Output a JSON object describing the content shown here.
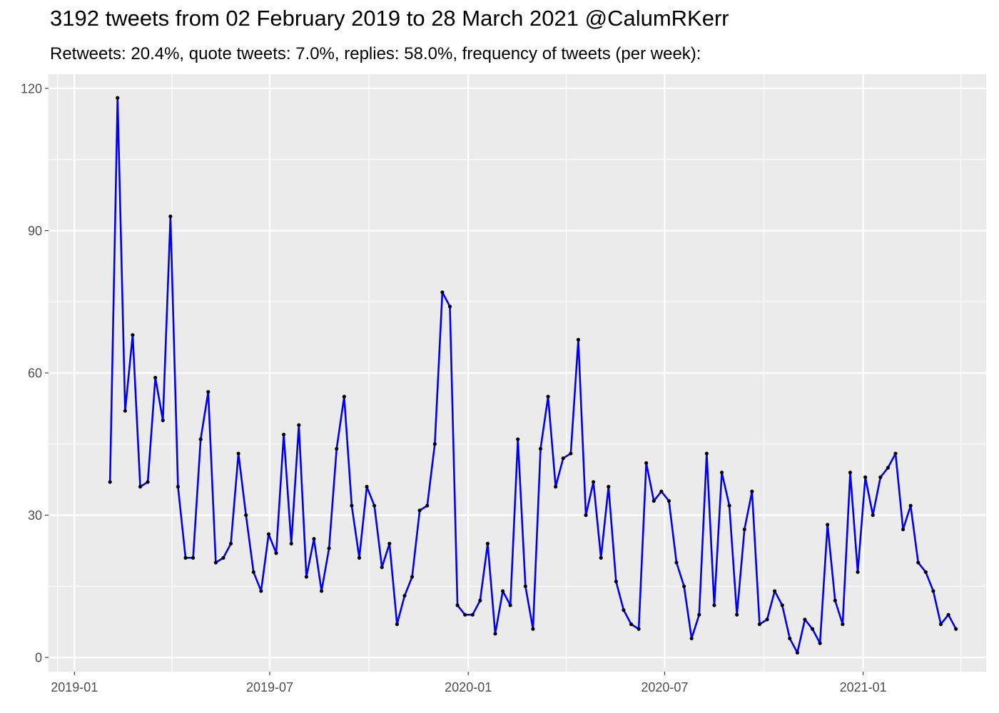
{
  "title": "3192 tweets from 02 February 2019 to 28 March 2021 @CalumRKerr",
  "subtitle": "Retweets: 20.4%, quote tweets: 7.0%, replies: 58.0%, frequency of tweets (per week):",
  "colors": {
    "line": "#0000ee",
    "point": "#000000",
    "panel": "#ebebeb",
    "grid": "#ffffff"
  },
  "chart_data": {
    "type": "line",
    "title": "3192 tweets from 02 February 2019 to 28 March 2021 @CalumRKerr",
    "subtitle": "Retweets: 20.4%, quote tweets: 7.0%, replies: 58.0%, frequency of tweets (per week):",
    "xlabel": "",
    "ylabel": "",
    "x_axis": {
      "type": "date",
      "range": [
        "2018-12-08",
        "2021-04-25"
      ],
      "ticks": [
        "2019-01",
        "2019-07",
        "2020-01",
        "2020-07",
        "2021-01"
      ]
    },
    "y_axis": {
      "range": [
        -3,
        123
      ],
      "ticks": [
        0,
        30,
        60,
        90,
        120
      ]
    },
    "grid": true,
    "series": [
      {
        "points": [
          [
            "2019-02-03",
            37
          ],
          [
            "2019-02-10",
            118
          ],
          [
            "2019-02-17",
            52
          ],
          [
            "2019-02-24",
            68
          ],
          [
            "2019-03-03",
            36
          ],
          [
            "2019-03-10",
            37
          ],
          [
            "2019-03-17",
            59
          ],
          [
            "2019-03-24",
            50
          ],
          [
            "2019-03-31",
            93
          ],
          [
            "2019-04-07",
            36
          ],
          [
            "2019-04-14",
            21
          ],
          [
            "2019-04-21",
            21
          ],
          [
            "2019-04-28",
            46
          ],
          [
            "2019-05-05",
            56
          ],
          [
            "2019-05-12",
            20
          ],
          [
            "2019-05-19",
            21
          ],
          [
            "2019-05-26",
            24
          ],
          [
            "2019-06-02",
            43
          ],
          [
            "2019-06-09",
            30
          ],
          [
            "2019-06-16",
            18
          ],
          [
            "2019-06-23",
            14
          ],
          [
            "2019-06-30",
            26
          ],
          [
            "2019-07-07",
            22
          ],
          [
            "2019-07-14",
            47
          ],
          [
            "2019-07-21",
            24
          ],
          [
            "2019-07-28",
            49
          ],
          [
            "2019-08-04",
            17
          ],
          [
            "2019-08-11",
            25
          ],
          [
            "2019-08-18",
            14
          ],
          [
            "2019-08-25",
            23
          ],
          [
            "2019-09-01",
            44
          ],
          [
            "2019-09-08",
            55
          ],
          [
            "2019-09-15",
            32
          ],
          [
            "2019-09-22",
            21
          ],
          [
            "2019-09-29",
            36
          ],
          [
            "2019-10-06",
            32
          ],
          [
            "2019-10-13",
            19
          ],
          [
            "2019-10-20",
            24
          ],
          [
            "2019-10-27",
            7
          ],
          [
            "2019-11-03",
            13
          ],
          [
            "2019-11-10",
            17
          ],
          [
            "2019-11-17",
            31
          ],
          [
            "2019-11-24",
            32
          ],
          [
            "2019-12-01",
            45
          ],
          [
            "2019-12-08",
            77
          ],
          [
            "2019-12-15",
            74
          ],
          [
            "2019-12-22",
            11
          ],
          [
            "2019-12-29",
            9
          ],
          [
            "2020-01-05",
            9
          ],
          [
            "2020-01-12",
            12
          ],
          [
            "2020-01-19",
            24
          ],
          [
            "2020-01-26",
            5
          ],
          [
            "2020-02-02",
            14
          ],
          [
            "2020-02-09",
            11
          ],
          [
            "2020-02-16",
            46
          ],
          [
            "2020-02-23",
            15
          ],
          [
            "2020-03-01",
            6
          ],
          [
            "2020-03-08",
            44
          ],
          [
            "2020-03-15",
            55
          ],
          [
            "2020-03-22",
            36
          ],
          [
            "2020-03-29",
            42
          ],
          [
            "2020-04-05",
            43
          ],
          [
            "2020-04-12",
            67
          ],
          [
            "2020-04-19",
            30
          ],
          [
            "2020-04-26",
            37
          ],
          [
            "2020-05-03",
            21
          ],
          [
            "2020-05-10",
            36
          ],
          [
            "2020-05-17",
            16
          ],
          [
            "2020-05-24",
            10
          ],
          [
            "2020-05-31",
            7
          ],
          [
            "2020-06-07",
            6
          ],
          [
            "2020-06-14",
            41
          ],
          [
            "2020-06-21",
            33
          ],
          [
            "2020-06-28",
            35
          ],
          [
            "2020-07-05",
            33
          ],
          [
            "2020-07-12",
            20
          ],
          [
            "2020-07-19",
            15
          ],
          [
            "2020-07-26",
            4
          ],
          [
            "2020-08-02",
            9
          ],
          [
            "2020-08-09",
            43
          ],
          [
            "2020-08-16",
            11
          ],
          [
            "2020-08-23",
            39
          ],
          [
            "2020-08-30",
            32
          ],
          [
            "2020-09-06",
            9
          ],
          [
            "2020-09-13",
            27
          ],
          [
            "2020-09-20",
            35
          ],
          [
            "2020-09-27",
            7
          ],
          [
            "2020-10-04",
            8
          ],
          [
            "2020-10-11",
            14
          ],
          [
            "2020-10-18",
            11
          ],
          [
            "2020-10-25",
            4
          ],
          [
            "2020-11-01",
            1
          ],
          [
            "2020-11-08",
            8
          ],
          [
            "2020-11-15",
            6
          ],
          [
            "2020-11-22",
            3
          ],
          [
            "2020-11-29",
            28
          ],
          [
            "2020-12-06",
            12
          ],
          [
            "2020-12-13",
            7
          ],
          [
            "2020-12-20",
            39
          ],
          [
            "2020-12-27",
            18
          ],
          [
            "2021-01-03",
            38
          ],
          [
            "2021-01-10",
            30
          ],
          [
            "2021-01-17",
            38
          ],
          [
            "2021-01-24",
            40
          ],
          [
            "2021-01-31",
            43
          ],
          [
            "2021-02-07",
            27
          ],
          [
            "2021-02-14",
            32
          ],
          [
            "2021-02-21",
            20
          ],
          [
            "2021-02-28",
            18
          ],
          [
            "2021-03-07",
            14
          ],
          [
            "2021-03-14",
            7
          ],
          [
            "2021-03-21",
            9
          ],
          [
            "2021-03-28",
            6
          ]
        ]
      }
    ]
  }
}
